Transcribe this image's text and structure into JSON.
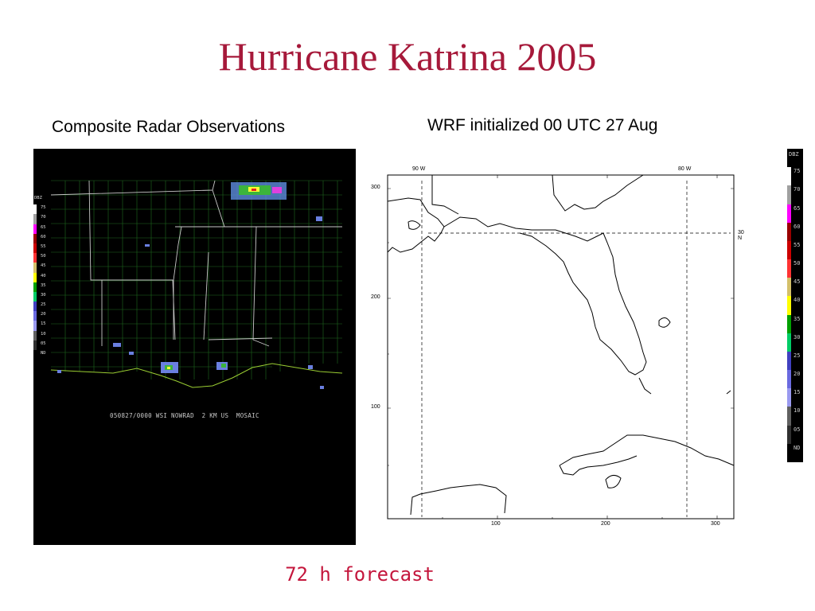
{
  "title": "Hurricane Katrina 2005",
  "left_panel": {
    "caption": "Composite Radar Observations",
    "stamp": "050827/0000 WSI NOWRAD  2 KM US  MOSAIC",
    "legend_title": "DBZ",
    "legend_labels": [
      "75",
      "70",
      "65",
      "60",
      "55",
      "50",
      "45",
      "40",
      "35",
      "30",
      "25",
      "20",
      "15",
      "10",
      "05",
      "ND"
    ]
  },
  "right_panel": {
    "caption": "WRF initialized 00 UTC 27 Aug",
    "lon_labels": [
      "90 W",
      "80 W"
    ],
    "lat_label": "30 N",
    "y_ticks": [
      "300",
      "200",
      "100"
    ],
    "x_ticks": [
      "100",
      "200",
      "300"
    ]
  },
  "right_legend": {
    "title": "DBZ",
    "labels": [
      "75",
      "70",
      "65",
      "60",
      "55",
      "50",
      "45",
      "40",
      "35",
      "30",
      "25",
      "20",
      "15",
      "10",
      "05",
      "ND"
    ]
  },
  "colors": {
    "title": "#a6193a",
    "forecast": "#c4163c",
    "county_lines": "#1f6b1f",
    "state_lines": "#c0c0c0"
  },
  "footer": "72 h forecast"
}
